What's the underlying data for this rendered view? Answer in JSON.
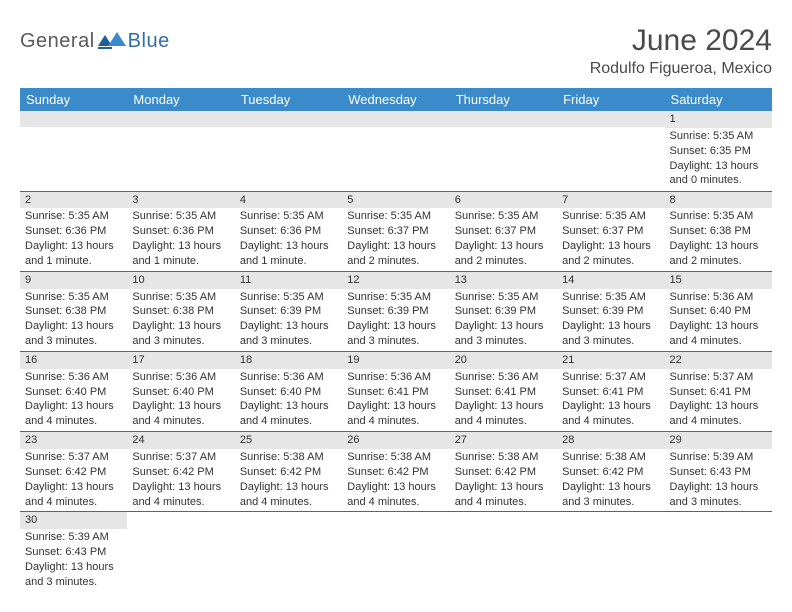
{
  "brand": {
    "part1": "General",
    "part2": "Blue"
  },
  "title": "June 2024",
  "location": "Rodulfo Figueroa, Mexico",
  "headers": [
    "Sunday",
    "Monday",
    "Tuesday",
    "Wednesday",
    "Thursday",
    "Friday",
    "Saturday"
  ],
  "colors": {
    "header_bg": "#3b8aca",
    "header_fg": "#ffffff",
    "daynum_bg": "#e6e6e6",
    "border": "#2f6fa8",
    "brand_accent": "#2f6fa8",
    "text": "#333333"
  },
  "weeks": [
    [
      {
        "n": "",
        "sr": "",
        "ss": "",
        "dl": ""
      },
      {
        "n": "",
        "sr": "",
        "ss": "",
        "dl": ""
      },
      {
        "n": "",
        "sr": "",
        "ss": "",
        "dl": ""
      },
      {
        "n": "",
        "sr": "",
        "ss": "",
        "dl": ""
      },
      {
        "n": "",
        "sr": "",
        "ss": "",
        "dl": ""
      },
      {
        "n": "",
        "sr": "",
        "ss": "",
        "dl": ""
      },
      {
        "n": "1",
        "sr": "Sunrise: 5:35 AM",
        "ss": "Sunset: 6:35 PM",
        "dl": "Daylight: 13 hours and 0 minutes."
      }
    ],
    [
      {
        "n": "2",
        "sr": "Sunrise: 5:35 AM",
        "ss": "Sunset: 6:36 PM",
        "dl": "Daylight: 13 hours and 1 minute."
      },
      {
        "n": "3",
        "sr": "Sunrise: 5:35 AM",
        "ss": "Sunset: 6:36 PM",
        "dl": "Daylight: 13 hours and 1 minute."
      },
      {
        "n": "4",
        "sr": "Sunrise: 5:35 AM",
        "ss": "Sunset: 6:36 PM",
        "dl": "Daylight: 13 hours and 1 minute."
      },
      {
        "n": "5",
        "sr": "Sunrise: 5:35 AM",
        "ss": "Sunset: 6:37 PM",
        "dl": "Daylight: 13 hours and 2 minutes."
      },
      {
        "n": "6",
        "sr": "Sunrise: 5:35 AM",
        "ss": "Sunset: 6:37 PM",
        "dl": "Daylight: 13 hours and 2 minutes."
      },
      {
        "n": "7",
        "sr": "Sunrise: 5:35 AM",
        "ss": "Sunset: 6:37 PM",
        "dl": "Daylight: 13 hours and 2 minutes."
      },
      {
        "n": "8",
        "sr": "Sunrise: 5:35 AM",
        "ss": "Sunset: 6:38 PM",
        "dl": "Daylight: 13 hours and 2 minutes."
      }
    ],
    [
      {
        "n": "9",
        "sr": "Sunrise: 5:35 AM",
        "ss": "Sunset: 6:38 PM",
        "dl": "Daylight: 13 hours and 3 minutes."
      },
      {
        "n": "10",
        "sr": "Sunrise: 5:35 AM",
        "ss": "Sunset: 6:38 PM",
        "dl": "Daylight: 13 hours and 3 minutes."
      },
      {
        "n": "11",
        "sr": "Sunrise: 5:35 AM",
        "ss": "Sunset: 6:39 PM",
        "dl": "Daylight: 13 hours and 3 minutes."
      },
      {
        "n": "12",
        "sr": "Sunrise: 5:35 AM",
        "ss": "Sunset: 6:39 PM",
        "dl": "Daylight: 13 hours and 3 minutes."
      },
      {
        "n": "13",
        "sr": "Sunrise: 5:35 AM",
        "ss": "Sunset: 6:39 PM",
        "dl": "Daylight: 13 hours and 3 minutes."
      },
      {
        "n": "14",
        "sr": "Sunrise: 5:35 AM",
        "ss": "Sunset: 6:39 PM",
        "dl": "Daylight: 13 hours and 3 minutes."
      },
      {
        "n": "15",
        "sr": "Sunrise: 5:36 AM",
        "ss": "Sunset: 6:40 PM",
        "dl": "Daylight: 13 hours and 4 minutes."
      }
    ],
    [
      {
        "n": "16",
        "sr": "Sunrise: 5:36 AM",
        "ss": "Sunset: 6:40 PM",
        "dl": "Daylight: 13 hours and 4 minutes."
      },
      {
        "n": "17",
        "sr": "Sunrise: 5:36 AM",
        "ss": "Sunset: 6:40 PM",
        "dl": "Daylight: 13 hours and 4 minutes."
      },
      {
        "n": "18",
        "sr": "Sunrise: 5:36 AM",
        "ss": "Sunset: 6:40 PM",
        "dl": "Daylight: 13 hours and 4 minutes."
      },
      {
        "n": "19",
        "sr": "Sunrise: 5:36 AM",
        "ss": "Sunset: 6:41 PM",
        "dl": "Daylight: 13 hours and 4 minutes."
      },
      {
        "n": "20",
        "sr": "Sunrise: 5:36 AM",
        "ss": "Sunset: 6:41 PM",
        "dl": "Daylight: 13 hours and 4 minutes."
      },
      {
        "n": "21",
        "sr": "Sunrise: 5:37 AM",
        "ss": "Sunset: 6:41 PM",
        "dl": "Daylight: 13 hours and 4 minutes."
      },
      {
        "n": "22",
        "sr": "Sunrise: 5:37 AM",
        "ss": "Sunset: 6:41 PM",
        "dl": "Daylight: 13 hours and 4 minutes."
      }
    ],
    [
      {
        "n": "23",
        "sr": "Sunrise: 5:37 AM",
        "ss": "Sunset: 6:42 PM",
        "dl": "Daylight: 13 hours and 4 minutes."
      },
      {
        "n": "24",
        "sr": "Sunrise: 5:37 AM",
        "ss": "Sunset: 6:42 PM",
        "dl": "Daylight: 13 hours and 4 minutes."
      },
      {
        "n": "25",
        "sr": "Sunrise: 5:38 AM",
        "ss": "Sunset: 6:42 PM",
        "dl": "Daylight: 13 hours and 4 minutes."
      },
      {
        "n": "26",
        "sr": "Sunrise: 5:38 AM",
        "ss": "Sunset: 6:42 PM",
        "dl": "Daylight: 13 hours and 4 minutes."
      },
      {
        "n": "27",
        "sr": "Sunrise: 5:38 AM",
        "ss": "Sunset: 6:42 PM",
        "dl": "Daylight: 13 hours and 4 minutes."
      },
      {
        "n": "28",
        "sr": "Sunrise: 5:38 AM",
        "ss": "Sunset: 6:42 PM",
        "dl": "Daylight: 13 hours and 3 minutes."
      },
      {
        "n": "29",
        "sr": "Sunrise: 5:39 AM",
        "ss": "Sunset: 6:43 PM",
        "dl": "Daylight: 13 hours and 3 minutes."
      }
    ],
    [
      {
        "n": "30",
        "sr": "Sunrise: 5:39 AM",
        "ss": "Sunset: 6:43 PM",
        "dl": "Daylight: 13 hours and 3 minutes."
      },
      {
        "n": "",
        "sr": "",
        "ss": "",
        "dl": ""
      },
      {
        "n": "",
        "sr": "",
        "ss": "",
        "dl": ""
      },
      {
        "n": "",
        "sr": "",
        "ss": "",
        "dl": ""
      },
      {
        "n": "",
        "sr": "",
        "ss": "",
        "dl": ""
      },
      {
        "n": "",
        "sr": "",
        "ss": "",
        "dl": ""
      },
      {
        "n": "",
        "sr": "",
        "ss": "",
        "dl": ""
      }
    ]
  ]
}
